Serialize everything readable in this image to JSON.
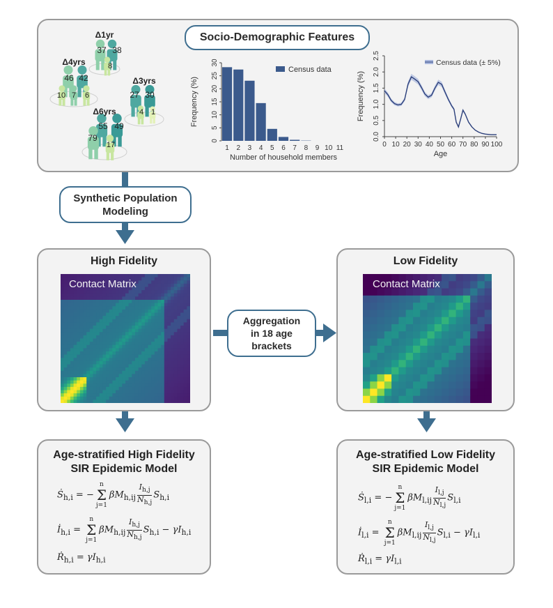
{
  "socio": {
    "title": "Socio-Demographic Features",
    "families": [
      {
        "label": "Δ1yr",
        "ages": [
          "37",
          "38",
          "8"
        ]
      },
      {
        "label": "Δ4yrs",
        "ages": [
          "46",
          "42",
          "10",
          "7",
          "6"
        ]
      },
      {
        "label": "Δ3yrs",
        "ages": [
          "27",
          "30",
          "4",
          "1"
        ]
      },
      {
        "label": "Δ6yrs",
        "ages": [
          "55",
          "49",
          "79",
          "17"
        ]
      }
    ]
  },
  "household_chart": {
    "chart_data": {
      "type": "bar",
      "legend": "Census data",
      "legend_placement": "top-right",
      "categories": [
        "1",
        "2",
        "3",
        "4",
        "5",
        "6",
        "7",
        "8",
        "9",
        "10",
        "11"
      ],
      "values": [
        28.3,
        27.4,
        23.1,
        14.5,
        4.6,
        1.5,
        0.4,
        0.1,
        0,
        0,
        0
      ],
      "xlabel": "Number of household members",
      "ylabel": "Frequency (%)",
      "ylim": [
        0,
        30
      ],
      "yticks": [
        "0",
        "5",
        "10",
        "15",
        "20",
        "25",
        "30"
      ]
    }
  },
  "age_chart": {
    "chart_data": {
      "type": "line",
      "legend": "Census data (± 5%)",
      "legend_placement": "top-right",
      "x": [
        0,
        3,
        6,
        9,
        12,
        15,
        18,
        21,
        24,
        27,
        30,
        33,
        36,
        39,
        42,
        45,
        48,
        51,
        54,
        57,
        60,
        62,
        64,
        66,
        68,
        70,
        72,
        75,
        78,
        81,
        84,
        87,
        90,
        95,
        100
      ],
      "y": [
        1.42,
        1.3,
        1.12,
        1.02,
        0.98,
        1.0,
        1.15,
        1.62,
        1.85,
        1.78,
        1.7,
        1.52,
        1.32,
        1.22,
        1.28,
        1.5,
        1.68,
        1.62,
        1.38,
        1.15,
        0.95,
        0.85,
        0.45,
        0.3,
        0.55,
        0.82,
        0.7,
        0.45,
        0.3,
        0.2,
        0.14,
        0.1,
        0.08,
        0.06,
        0.06
      ],
      "xlabel": "Age",
      "ylabel": "Frequency (%)",
      "xlim": [
        0,
        100
      ],
      "ylim": [
        0,
        2.5
      ],
      "xticks": [
        "0",
        "10",
        "20",
        "30",
        "40",
        "50",
        "60",
        "70",
        "80",
        "90",
        "100"
      ],
      "yticks": [
        "0.0",
        "0.5",
        "1.0",
        "1.5",
        "2.0",
        "2.5"
      ]
    }
  },
  "synthetic": {
    "line1": "Synthetic Population",
    "line2": "Modeling"
  },
  "high": {
    "title": "High Fidelity",
    "matrix_label": "Contact Matrix"
  },
  "low": {
    "title": "Low Fidelity",
    "matrix_label": "Contact Matrix"
  },
  "aggregation": {
    "line1": "Aggregation",
    "line2": "in 18 age",
    "line3": "brackets"
  },
  "high_model": {
    "title1": "Age-stratified High Fidelity",
    "title2": "SIR Epidemic Model"
  },
  "low_model": {
    "title1": "Age-stratified Low Fidelity",
    "title2": "SIR Epidemic Model"
  },
  "colors": {
    "accent": "#3e6e8f",
    "bar": "#3b5a8c",
    "line": "#2b3f7a"
  }
}
